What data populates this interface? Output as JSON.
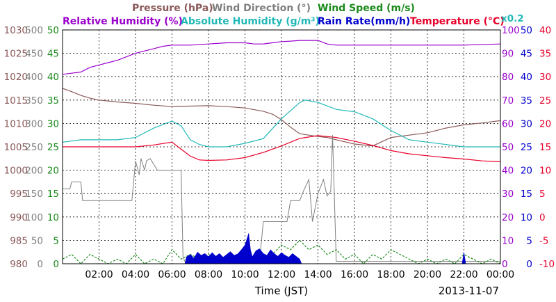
{
  "chart_data": {
    "type": "line",
    "xlabel": "Time (JST)",
    "date": "2013-11-07",
    "x_ticks": [
      "02:00",
      "04:00",
      "06:00",
      "08:00",
      "10:00",
      "12:00",
      "14:00",
      "16:00",
      "18:00",
      "20:00",
      "22:00",
      "00:00"
    ],
    "x_range_hours": [
      0,
      24
    ],
    "grid": true,
    "legend_placement": "top",
    "axes": {
      "pressure": {
        "label": "Pressure (hPa)",
        "color": "#8b5a5a",
        "range": [
          980,
          1030
        ],
        "ticks": [
          "1030",
          "1025",
          "1020",
          "1015",
          "1010",
          "1005",
          "1000",
          "995",
          "990",
          "985",
          "980"
        ]
      },
      "wind_direction": {
        "label": "Wind Direction (°)",
        "color": "#808080",
        "range": [
          0,
          500
        ],
        "ticks": [
          "500",
          "450",
          "400",
          "350",
          "300",
          "250",
          "200",
          "150",
          "100",
          "50",
          "0"
        ]
      },
      "wind_speed": {
        "label": "Wind Speed (m/s)",
        "color": "#1a8a1a",
        "range": [
          0,
          50
        ],
        "ticks": [
          "50",
          "45",
          "40",
          "35",
          "30",
          "25",
          "20",
          "15",
          "10",
          "5",
          "0"
        ]
      },
      "humidity": {
        "label": "Relative Humidity (%)",
        "color": "#9900cc",
        "range": [
          0,
          100
        ],
        "ticks": [
          "100",
          "90",
          "80",
          "70",
          "60",
          "50",
          "40",
          "30",
          "20",
          "10",
          "0"
        ]
      },
      "abs_humidity": {
        "label": "Absolute Humidity (g/m3)",
        "scale_note": "x0.2",
        "color": "#22b8b8"
      },
      "rain_rate": {
        "label": "Rain Rate(mm/h)",
        "color": "#0000cc",
        "range": [
          0,
          50
        ],
        "ticks": [
          "50",
          "45",
          "40",
          "35",
          "30",
          "25",
          "20",
          "15",
          "10",
          "5",
          "0"
        ]
      },
      "temperature": {
        "label": "Temperature (°C)",
        "color": "#e8002a",
        "range": [
          -10,
          40
        ],
        "ticks": [
          "40",
          "35",
          "30",
          "25",
          "20",
          "15",
          "10",
          "5",
          "0",
          "-5",
          "-10"
        ]
      }
    },
    "series": [
      {
        "name": "Pressure (hPa)",
        "axis": "pressure",
        "color": "#8b5a5a",
        "x": [
          0,
          0.5,
          1,
          1.5,
          2,
          3,
          4,
          5,
          6,
          7,
          8,
          9,
          10,
          11,
          11.5,
          12,
          12.5,
          13,
          14,
          14.5,
          15,
          16,
          17,
          18,
          19,
          20,
          21,
          22,
          23,
          24
        ],
        "y": [
          1017.5,
          1016.8,
          1016,
          1015.4,
          1015,
          1014.6,
          1014.3,
          1013.9,
          1013.6,
          1013.7,
          1013.8,
          1013.6,
          1013.3,
          1012.6,
          1012,
          1010.8,
          1009.2,
          1007.8,
          1007.2,
          1007,
          1006.5,
          1005.6,
          1005.2,
          1007,
          1007.5,
          1008,
          1009,
          1009.7,
          1010.1,
          1010.6
        ]
      },
      {
        "name": "Relative Humidity (%)",
        "axis": "humidity",
        "color": "#9900cc",
        "x": [
          0,
          0.5,
          1,
          1.5,
          2,
          2.5,
          3,
          3.5,
          4,
          4.5,
          5,
          5.5,
          6,
          7,
          8,
          9,
          10,
          10.5,
          11,
          11.5,
          12,
          12.5,
          13,
          13.5,
          14,
          14.5,
          15,
          16,
          18,
          20,
          22,
          24
        ],
        "y": [
          81,
          81.5,
          82,
          84,
          85,
          86,
          87,
          88.5,
          90,
          91,
          92,
          93,
          93.5,
          93.5,
          94,
          94.5,
          94.5,
          94,
          94,
          94.5,
          95,
          95.2,
          95.5,
          95.5,
          95.5,
          94,
          93.5,
          93.5,
          93.5,
          93.5,
          93.5,
          94
        ]
      },
      {
        "name": "Absolute Humidity (g/m3)",
        "axis": "humidity",
        "color": "#22b8b8",
        "x": [
          0,
          1,
          2,
          3,
          4,
          5,
          6,
          6.5,
          7,
          7.5,
          8,
          9,
          10,
          11,
          12,
          13,
          13.3,
          14,
          15,
          16,
          17,
          18,
          19,
          20,
          21,
          22,
          23,
          24
        ],
        "y": [
          52,
          53,
          53,
          53,
          54,
          58,
          61,
          59,
          53,
          51,
          50,
          50,
          51.5,
          53.5,
          62,
          69,
          70,
          69,
          66,
          65,
          62,
          57,
          53,
          52,
          51,
          50,
          50,
          50
        ]
      },
      {
        "name": "Temperature (°C)",
        "axis": "temperature",
        "color": "#e8002a",
        "x": [
          0,
          1,
          2,
          3,
          4,
          5,
          6,
          6.5,
          7,
          7.5,
          8,
          9,
          10,
          11,
          12,
          13,
          13.5,
          14,
          15,
          16,
          17,
          18,
          19,
          20,
          21,
          22,
          23,
          24
        ],
        "y": [
          15,
          15,
          15,
          15,
          15,
          15.4,
          16,
          14.5,
          13,
          12.2,
          12.1,
          12.2,
          12.7,
          13.8,
          15.2,
          16.8,
          17.1,
          17.4,
          17,
          16.2,
          15.3,
          14.2,
          13.5,
          13.1,
          12.7,
          12.4,
          12,
          11.8
        ]
      },
      {
        "name": "Wind Direction (°)",
        "axis": "wind_direction",
        "color": "#808080",
        "x": [
          0,
          0.4,
          0.5,
          1,
          1.1,
          2,
          3,
          3.8,
          4,
          4.2,
          4.3,
          4.5,
          4.6,
          4.8,
          5.2,
          6,
          6.5,
          6.6,
          6.7,
          7,
          8,
          9,
          10,
          10.5,
          10.8,
          11,
          11.5,
          12,
          12.3,
          12.5,
          13,
          13.2,
          13.5,
          13.7,
          14,
          14.3,
          14.5,
          14.7,
          14.8,
          15,
          16,
          17,
          18,
          19,
          20,
          21,
          22,
          23,
          24
        ],
        "y": [
          160,
          160,
          175,
          175,
          135,
          135,
          135,
          135,
          220,
          190,
          225,
          200,
          220,
          225,
          200,
          200,
          200,
          15,
          5,
          5,
          5,
          5,
          5,
          5,
          5,
          90,
          90,
          90,
          90,
          135,
          135,
          155,
          180,
          90,
          150,
          180,
          145,
          155,
          275,
          5,
          5,
          5,
          5,
          5,
          5,
          5,
          5,
          5,
          5
        ]
      },
      {
        "name": "Wind Speed (m/s)",
        "axis": "wind_speed",
        "color": "#1a8a1a",
        "x": [
          0,
          0.5,
          1,
          1.5,
          2,
          2.5,
          3,
          3.5,
          4,
          4.5,
          5,
          5.5,
          6,
          6.5,
          7,
          7.5,
          8,
          8.5,
          9,
          9.5,
          10,
          10.5,
          11,
          11.5,
          12,
          12.5,
          13,
          13.5,
          14,
          14.5,
          15,
          15.5,
          16,
          16.5,
          17,
          17.5,
          18,
          18.5,
          19,
          19.5,
          20,
          20.5,
          21,
          21.5,
          22,
          22.5,
          23,
          23.5,
          24
        ],
        "y": [
          1,
          2,
          0,
          2,
          1,
          0,
          1,
          0,
          2,
          0,
          1,
          0,
          3,
          1,
          2,
          1,
          2,
          1,
          0,
          1,
          2,
          0,
          1,
          2,
          4,
          3,
          5,
          3,
          4,
          2,
          3,
          1,
          2,
          0,
          2,
          1,
          3,
          2,
          1,
          0,
          1,
          0,
          1,
          0,
          2,
          1,
          0,
          1,
          0
        ]
      },
      {
        "name": "Rain Rate(mm/h)",
        "axis": "rain_rate",
        "color": "#0000cc",
        "x": [
          0,
          6.7,
          6.8,
          7,
          7.2,
          7.4,
          7.6,
          7.8,
          8,
          8.2,
          8.4,
          8.6,
          8.8,
          9,
          9.2,
          9.4,
          9.6,
          9.8,
          10,
          10.2,
          10.3,
          10.4,
          10.6,
          10.8,
          11,
          11.2,
          11.4,
          11.6,
          11.8,
          12,
          12.2,
          12.4,
          12.6,
          12.8,
          13,
          13.1,
          21.9,
          22,
          22.1,
          24
        ],
        "y": [
          0,
          0,
          1.5,
          2,
          1.2,
          2.5,
          1.8,
          2.2,
          1.5,
          2.4,
          1.6,
          2.2,
          1.4,
          2,
          2.6,
          1.8,
          2.1,
          3,
          4,
          6.5,
          3,
          1.5,
          2.8,
          3.2,
          2.2,
          1.8,
          3,
          2.2,
          1.6,
          2.4,
          1.8,
          1.4,
          2.2,
          1.6,
          1,
          0,
          0,
          2.5,
          0,
          0
        ]
      }
    ],
    "pressure_ticks": [
      "1030",
      "1025",
      "1020",
      "1015",
      "1010",
      "1005",
      "1000",
      "995",
      "990",
      "985",
      "980"
    ],
    "wind_direction_ticks": [
      "500",
      "450",
      "400",
      "350",
      "300",
      "250",
      "200",
      "150",
      "100",
      "50",
      "0"
    ],
    "wind_speed_ticks": [
      "50",
      "45",
      "40",
      "35",
      "30",
      "25",
      "20",
      "15",
      "10",
      "5",
      "0"
    ],
    "humidity_ticks": [
      "100",
      "90",
      "80",
      "70",
      "60",
      "50",
      "40",
      "30",
      "20",
      "10",
      "0"
    ],
    "rain_rate_ticks": [
      "50",
      "45",
      "40",
      "35",
      "30",
      "25",
      "20",
      "15",
      "10",
      "5",
      "0"
    ],
    "temperature_ticks": [
      "40",
      "35",
      "30",
      "25",
      "20",
      "15",
      "10",
      "5",
      "0",
      "-5",
      "-10"
    ]
  },
  "header": {
    "line1": [
      {
        "text": "Pressure (hPa)",
        "color": "#8b5a5a"
      },
      {
        "text": "Wind Direction (°)",
        "color": "#808080"
      },
      {
        "text": "Wind Speed (m/s)",
        "color": "#1a8a1a"
      }
    ],
    "line2": [
      {
        "text": "Relative Humidity (%)",
        "color": "#9900cc"
      },
      {
        "text": "Absolute Humidity (g/m³)",
        "color": "#22b8b8"
      },
      {
        "text": "Rain Rate(mm/h)",
        "color": "#0000cc"
      },
      {
        "text": "Temperature (°C)",
        "color": "#e8002a"
      }
    ],
    "scale_note": "x0.2"
  }
}
